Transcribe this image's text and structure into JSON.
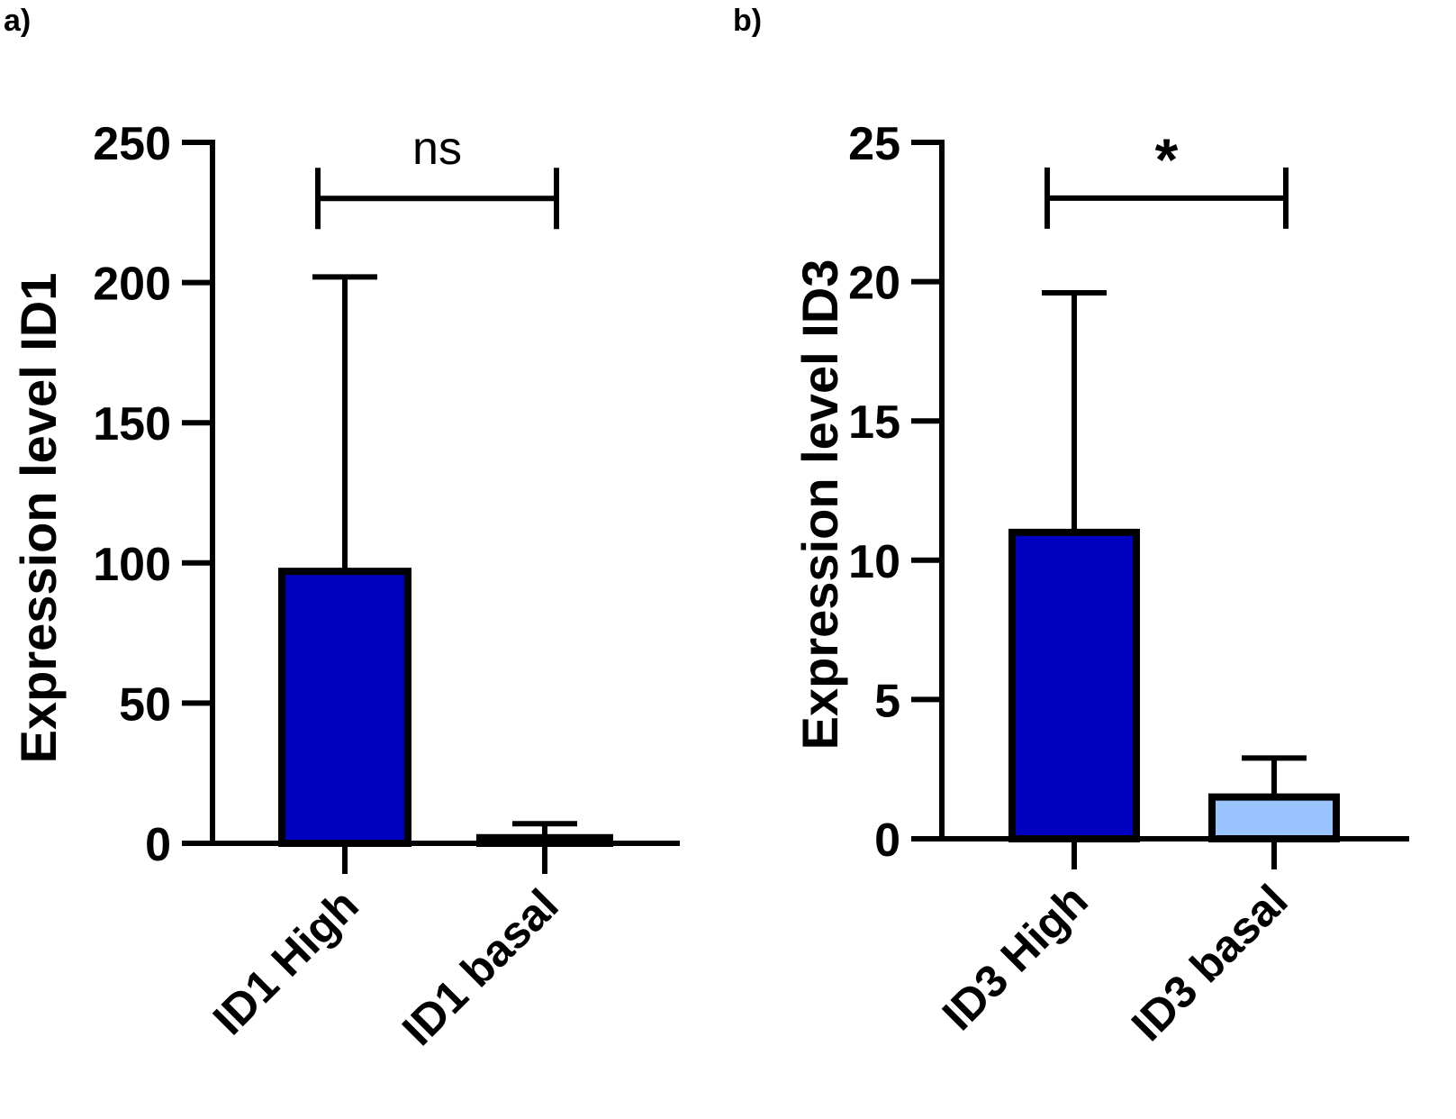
{
  "chart_data": [
    {
      "type": "bar",
      "panel_label": "a)",
      "ylabel": "Expression level ID1",
      "categories": [
        "ID1 High",
        "ID1 basal"
      ],
      "values": [
        97,
        2
      ],
      "error_upper": [
        202,
        7
      ],
      "ylim": [
        0,
        250
      ],
      "yticks": [
        "0",
        "50",
        "100",
        "150",
        "200",
        "250"
      ],
      "ytick_values": [
        0,
        50,
        100,
        150,
        200,
        250
      ],
      "bar_colors": [
        "#0000c0",
        "#0000c0"
      ],
      "significance": {
        "label": "ns",
        "y": 230
      }
    },
    {
      "type": "bar",
      "panel_label": "b)",
      "ylabel": "Expression level ID3",
      "categories": [
        "ID3 High",
        "ID3 basal"
      ],
      "values": [
        11,
        1.5
      ],
      "error_upper": [
        19.6,
        2.9
      ],
      "ylim": [
        0,
        25
      ],
      "yticks": [
        "0",
        "5",
        "10",
        "15",
        "20",
        "25"
      ],
      "ytick_values": [
        0,
        5,
        10,
        15,
        20,
        25
      ],
      "bar_colors": [
        "#0000c0",
        "#99c4ff"
      ],
      "significance": {
        "label": "*",
        "y": 23
      }
    }
  ]
}
